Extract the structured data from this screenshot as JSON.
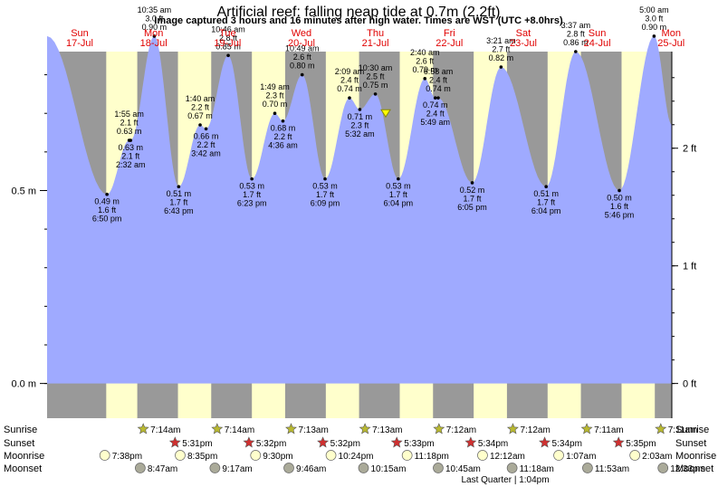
{
  "chart_data": {
    "type": "area",
    "title": "Artificial reef: falling  neap tide at 0.7m (2.2ft)",
    "subtitle": "Image captured 3 hours and 16 minutes after high water. Times are WST (UTC +8.0hrs)",
    "ylim": [
      -0.09,
      0.86
    ],
    "left_ticks": [
      {
        "v": 0.0,
        "label": "0.0 m"
      },
      {
        "v": 0.5,
        "label": "0.5 m"
      }
    ],
    "right_ticks": [
      {
        "v": 0.0,
        "label": "0 ft"
      },
      {
        "v": 0.3048,
        "label": "1 ft"
      },
      {
        "v": 0.6096,
        "label": "2 ft"
      }
    ],
    "days": [
      {
        "name": "Sun",
        "date": "17-Jul"
      },
      {
        "name": "Mon",
        "date": "18-Jul"
      },
      {
        "name": "Tue",
        "date": "19-Jul"
      },
      {
        "name": "Wed",
        "date": "20-Jul"
      },
      {
        "name": "Thu",
        "date": "21-Jul"
      },
      {
        "name": "Fri",
        "date": "22-Jul"
      },
      {
        "name": "Sat",
        "date": "23-Jul"
      },
      {
        "name": "Sun",
        "date": "24-Jul"
      },
      {
        "name": "Mon",
        "date": "25-Jul"
      }
    ],
    "tides": [
      {
        "t": 0.0,
        "h": 0.9
      },
      {
        "t": 0.81,
        "h": 0.49,
        "m": "0.49 m",
        "f": "1.6 ft",
        "time": "6:50 pm"
      },
      {
        "t": 1.11,
        "h": 0.63,
        "m": "0.63 m",
        "f": "2.1 ft",
        "time": "1:55 am"
      },
      {
        "t": 1.13,
        "h": 0.63,
        "m": "0.63 m",
        "f": "2.1 ft",
        "time": "2:32 am"
      },
      {
        "t": 1.45,
        "h": 0.9,
        "m": "0.90 m",
        "f": "3.0 ft",
        "time": "10:35 am"
      },
      {
        "t": 1.78,
        "h": 0.51,
        "m": "0.51 m",
        "f": "1.7 ft",
        "time": "6:43 pm"
      },
      {
        "t": 2.07,
        "h": 0.67,
        "m": "0.67 m",
        "f": "2.2 ft",
        "time": "1:40 am"
      },
      {
        "t": 2.15,
        "h": 0.66,
        "m": "0.66 m",
        "f": "2.2 ft",
        "time": "3:42 am"
      },
      {
        "t": 2.45,
        "h": 0.85,
        "m": "0.85 m",
        "f": "2.8 ft",
        "time": "10:46 am"
      },
      {
        "t": 2.77,
        "h": 0.53,
        "m": "0.53 m",
        "f": "1.7 ft",
        "time": "6:23 pm"
      },
      {
        "t": 3.08,
        "h": 0.7,
        "m": "0.70 m",
        "f": "2.3 ft",
        "time": "1:49 am"
      },
      {
        "t": 3.19,
        "h": 0.68,
        "m": "0.68 m",
        "f": "2.2 ft",
        "time": "4:36 am"
      },
      {
        "t": 3.45,
        "h": 0.8,
        "m": "0.80 m",
        "f": "2.6 ft",
        "time": "10:49 am"
      },
      {
        "t": 3.76,
        "h": 0.53,
        "m": "0.53 m",
        "f": "1.7 ft",
        "time": "6:09 pm"
      },
      {
        "t": 4.09,
        "h": 0.74,
        "m": "0.74 m",
        "f": "2.4 ft",
        "time": "2:09 am"
      },
      {
        "t": 4.23,
        "h": 0.71,
        "m": "0.71 m",
        "f": "2.3 ft",
        "time": "5:32 am"
      },
      {
        "t": 4.44,
        "h": 0.75,
        "m": "0.75 m",
        "f": "2.5 ft",
        "time": "10:30 am"
      },
      {
        "t": 4.75,
        "h": 0.53,
        "m": "0.53 m",
        "f": "1.7 ft",
        "time": "6:04 pm"
      },
      {
        "t": 5.11,
        "h": 0.79,
        "m": "0.79 m",
        "f": "2.6 ft",
        "time": "2:40 am"
      },
      {
        "t": 5.29,
        "h": 0.74,
        "m": "0.74 m",
        "f": "2.4 ft",
        "time": "6:58 am"
      },
      {
        "t": 5.25,
        "h": 0.74,
        "m": "0.74 m",
        "f": "2.4 ft",
        "time": "5:49 am"
      },
      {
        "t": 5.75,
        "h": 0.52,
        "m": "0.52 m",
        "f": "1.7 ft",
        "time": "6:05 pm"
      },
      {
        "t": 6.14,
        "h": 0.82,
        "m": "0.82 m",
        "f": "2.7 ft",
        "time": "3:21 am"
      },
      {
        "t": 6.75,
        "h": 0.51,
        "m": "0.51 m",
        "f": "1.7 ft",
        "time": "6:04 pm"
      },
      {
        "t": 7.15,
        "h": 0.86,
        "m": "0.86 m",
        "f": "2.8 ft",
        "time": "3:37 am"
      },
      {
        "t": 7.74,
        "h": 0.5,
        "m": "0.50 m",
        "f": "1.6 ft",
        "time": "5:46 pm"
      },
      {
        "t": 8.21,
        "h": 0.9,
        "m": "0.90 m",
        "f": "3.0 ft",
        "time": "5:00 am"
      },
      {
        "t": 8.45,
        "h": 0.67
      }
    ],
    "now": {
      "t": 4.58,
      "h": 0.7
    },
    "night": [
      [
        0.0,
        0.8
      ],
      [
        1.22,
        1.77
      ],
      [
        2.22,
        2.77
      ],
      [
        3.22,
        3.77
      ],
      [
        4.22,
        4.77
      ],
      [
        5.22,
        5.77
      ],
      [
        6.22,
        6.77
      ],
      [
        7.22,
        7.77
      ],
      [
        8.22,
        8.45
      ]
    ],
    "sunrise": {
      "label": "Sunrise",
      "events": [
        {
          "t": 1.3,
          "v": "7:14am"
        },
        {
          "t": 2.3,
          "v": "7:14am"
        },
        {
          "t": 3.3,
          "v": "7:13am"
        },
        {
          "t": 4.3,
          "v": "7:13am"
        },
        {
          "t": 5.3,
          "v": "7:12am"
        },
        {
          "t": 6.3,
          "v": "7:12am"
        },
        {
          "t": 7.3,
          "v": "7:11am"
        },
        {
          "t": 8.3,
          "v": "7:11am"
        }
      ]
    },
    "sunset": {
      "label": "Sunset",
      "events": [
        {
          "t": 1.73,
          "v": "5:31pm"
        },
        {
          "t": 2.73,
          "v": "5:32pm"
        },
        {
          "t": 3.73,
          "v": "5:32pm"
        },
        {
          "t": 4.73,
          "v": "5:33pm"
        },
        {
          "t": 5.73,
          "v": "5:34pm"
        },
        {
          "t": 6.73,
          "v": "5:34pm"
        },
        {
          "t": 7.73,
          "v": "5:35pm"
        }
      ]
    },
    "moonrise": {
      "label": "Moonrise",
      "events": [
        {
          "t": 0.78,
          "v": "7:38pm"
        },
        {
          "t": 1.8,
          "v": "8:35pm"
        },
        {
          "t": 2.82,
          "v": "9:30pm"
        },
        {
          "t": 3.84,
          "v": "10:24pm"
        },
        {
          "t": 4.87,
          "v": "11:18pm"
        },
        {
          "t": 5.89,
          "v": "12:12am"
        },
        {
          "t": 6.92,
          "v": "1:07am"
        },
        {
          "t": 7.95,
          "v": "2:03am"
        }
      ]
    },
    "moonset": {
      "label": "Moonset",
      "events": [
        {
          "t": 1.26,
          "v": "8:47am"
        },
        {
          "t": 2.27,
          "v": "9:17am"
        },
        {
          "t": 3.27,
          "v": "9:46am"
        },
        {
          "t": 4.28,
          "v": "10:15am"
        },
        {
          "t": 5.29,
          "v": "10:45am"
        },
        {
          "t": 6.29,
          "v": "11:18am"
        },
        {
          "t": 7.31,
          "v": "11:53am"
        },
        {
          "t": 8.33,
          "v": "12:33pm"
        }
      ]
    },
    "moon_phase": "Last Quarter | 1:04pm",
    "colors": {
      "water": "#9faaff",
      "day": "#ffffcc",
      "night": "#999999",
      "sun": "#b9b930",
      "sunset": "#d03030",
      "moonrise": "#ffffcc",
      "moonset": "#aaaa99"
    }
  }
}
